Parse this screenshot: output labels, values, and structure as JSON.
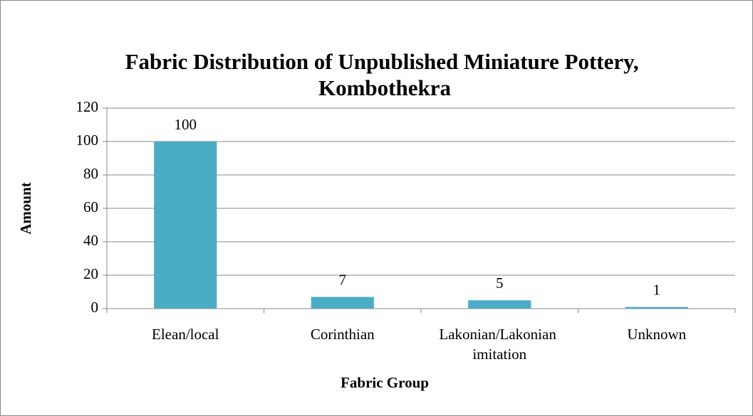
{
  "chart_data": {
    "type": "bar",
    "title": "Fabric Distribution of Unpublished Miniature Pottery, Kombothekra",
    "x_label": "Fabric Group",
    "y_label": "Amount",
    "categories": [
      "Elean/local",
      "Corinthian",
      "Lakonian/Lakonian imitation",
      "Unknown"
    ],
    "values": [
      100,
      7,
      5,
      1
    ],
    "color": "#4bacc6",
    "ylim": [
      0,
      120
    ],
    "yticks": [
      0,
      20,
      40,
      60,
      80,
      100,
      120
    ],
    "grid": true
  }
}
